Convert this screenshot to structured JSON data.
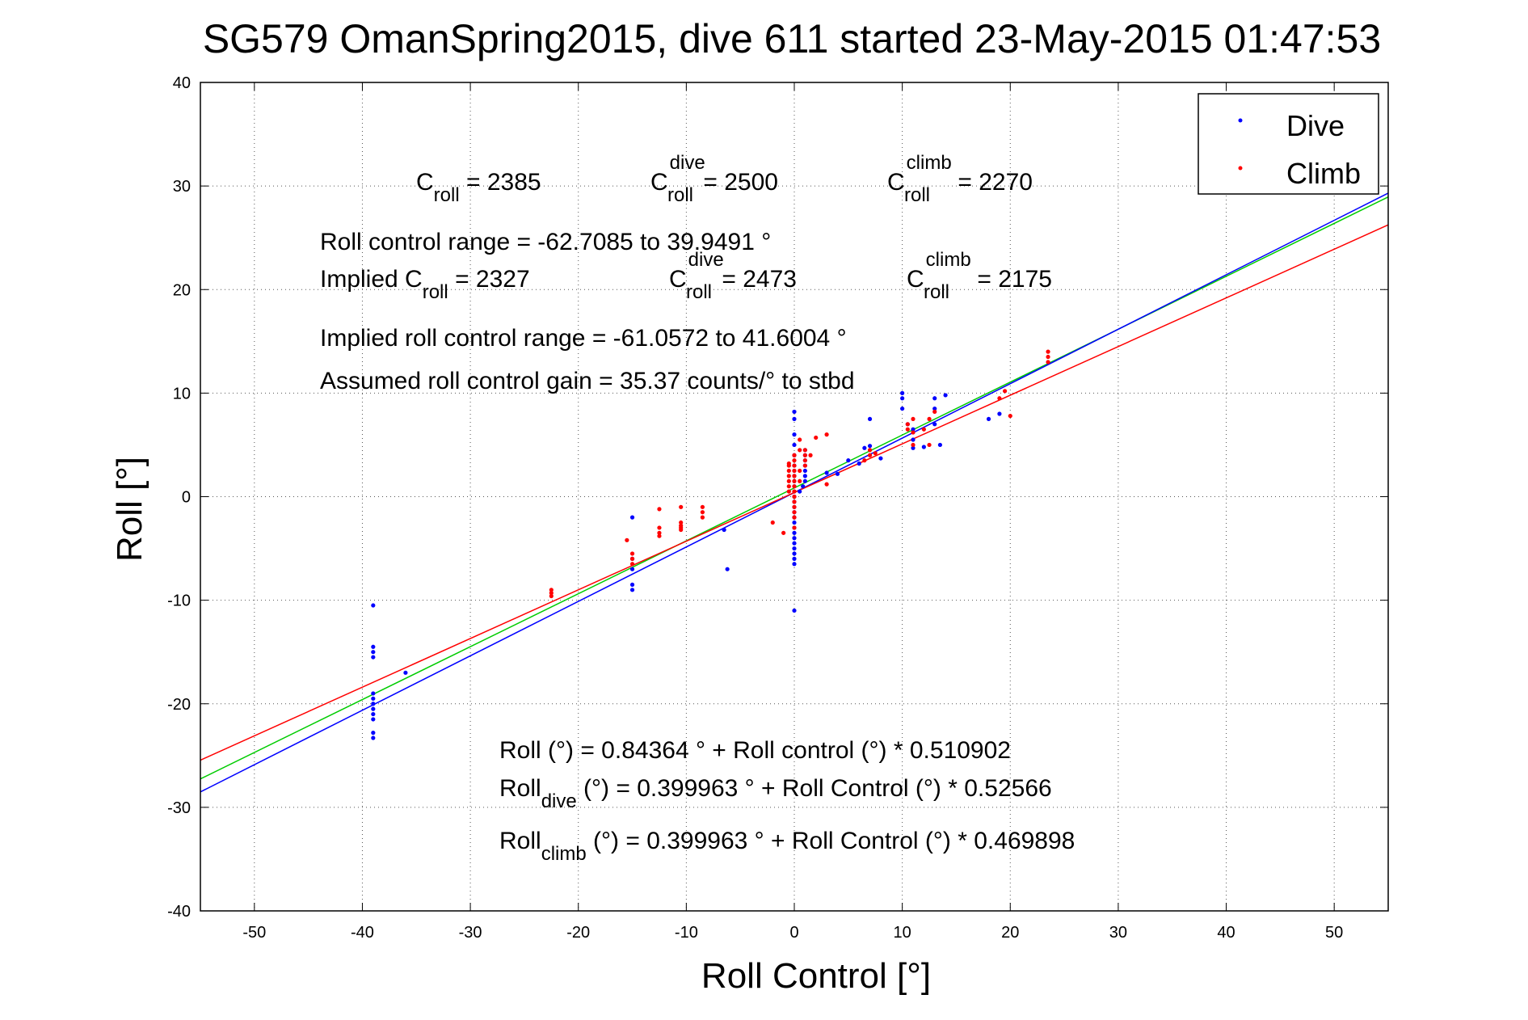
{
  "chart_data": {
    "type": "scatter",
    "title": "SG579 OmanSpring2015, dive 611 started 23-May-2015 01:47:53",
    "xlabel": "Roll Control [°]",
    "ylabel": "Roll [°]",
    "xlim": [
      -55,
      55
    ],
    "ylim": [
      -40,
      40
    ],
    "xticks": [
      -50,
      -40,
      -30,
      -20,
      -10,
      0,
      10,
      20,
      30,
      40,
      50
    ],
    "yticks": [
      -40,
      -30,
      -20,
      -10,
      0,
      10,
      20,
      30,
      40
    ],
    "grid": true,
    "legend": {
      "position": "top-right",
      "entries": [
        "Dive",
        "Climb"
      ]
    },
    "colors": {
      "dive": "#0000ff",
      "climb": "#ff0000",
      "fit_all": "#00cc00",
      "axes": "#000000",
      "grid": "#555555"
    },
    "series": [
      {
        "name": "Dive",
        "color": "#0000ff",
        "points": [
          [
            -39,
            -10.5
          ],
          [
            -39,
            -14.5
          ],
          [
            -39,
            -15
          ],
          [
            -39,
            -15.5
          ],
          [
            -39,
            -19
          ],
          [
            -39,
            -19.5
          ],
          [
            -39,
            -20
          ],
          [
            -39,
            -20.5
          ],
          [
            -39,
            -21
          ],
          [
            -39,
            -21.5
          ],
          [
            -39,
            -22.8
          ],
          [
            -39,
            -23.3
          ],
          [
            -36,
            -17
          ],
          [
            -15,
            -2
          ],
          [
            -15,
            -6
          ],
          [
            -15,
            -7
          ],
          [
            -15,
            -8.5
          ],
          [
            -15,
            -9
          ],
          [
            -6.5,
            -3.2
          ],
          [
            -6.2,
            -7
          ],
          [
            0,
            -11
          ],
          [
            0,
            -6.5
          ],
          [
            0,
            -6
          ],
          [
            0,
            -5.5
          ],
          [
            0,
            -5
          ],
          [
            0,
            -4.5
          ],
          [
            0,
            -4
          ],
          [
            0,
            -3.5
          ],
          [
            0,
            -3
          ],
          [
            0,
            -2.5
          ],
          [
            0,
            -2
          ],
          [
            0,
            -1.5
          ],
          [
            0,
            -1
          ],
          [
            0,
            -0.5
          ],
          [
            0,
            0
          ],
          [
            0,
            0.5
          ],
          [
            0,
            1
          ],
          [
            0,
            1.5
          ],
          [
            0,
            2
          ],
          [
            0,
            2.5
          ],
          [
            0,
            3
          ],
          [
            0,
            4
          ],
          [
            0,
            5
          ],
          [
            0,
            6
          ],
          [
            0,
            7.5
          ],
          [
            0,
            8.2
          ],
          [
            0.5,
            0.5
          ],
          [
            0.8,
            1
          ],
          [
            1,
            1.5
          ],
          [
            1,
            2
          ],
          [
            1,
            2.5
          ],
          [
            1,
            3
          ],
          [
            1,
            3.5
          ],
          [
            1,
            4
          ],
          [
            1,
            4.5
          ],
          [
            3,
            2.3
          ],
          [
            4,
            2.2
          ],
          [
            5,
            3.5
          ],
          [
            6,
            3.2
          ],
          [
            6.5,
            4.7
          ],
          [
            7,
            4.9
          ],
          [
            7,
            7.5
          ],
          [
            8,
            3.7
          ],
          [
            10,
            8.5
          ],
          [
            10,
            9.5
          ],
          [
            10,
            10
          ],
          [
            10.5,
            7
          ],
          [
            11,
            6.5
          ],
          [
            11,
            5.5
          ],
          [
            11,
            4.7
          ],
          [
            12,
            4.8
          ],
          [
            13,
            9.5
          ],
          [
            13,
            8.5
          ],
          [
            13,
            7
          ],
          [
            13.5,
            5
          ],
          [
            14,
            9.8
          ],
          [
            18,
            7.5
          ],
          [
            19,
            8
          ]
        ]
      },
      {
        "name": "Climb",
        "color": "#ff0000",
        "points": [
          [
            -22.5,
            -9
          ],
          [
            -22.5,
            -9.3
          ],
          [
            -22.5,
            -9.6
          ],
          [
            -15,
            -5.5
          ],
          [
            -15,
            -6
          ],
          [
            -15,
            -6.5
          ],
          [
            -15.5,
            -4.2
          ],
          [
            -12.5,
            -1.2
          ],
          [
            -12.5,
            -3
          ],
          [
            -12.5,
            -3.5
          ],
          [
            -12.5,
            -3.8
          ],
          [
            -10.5,
            -2.5
          ],
          [
            -10.5,
            -2.8
          ],
          [
            -10.5,
            -3
          ],
          [
            -10.5,
            -1
          ],
          [
            -10.5,
            -3.2
          ],
          [
            -8.5,
            -1
          ],
          [
            -8.5,
            -1.5
          ],
          [
            -8.5,
            -2
          ],
          [
            -2,
            -2.5
          ],
          [
            -1,
            -3.5
          ],
          [
            -0.5,
            0.5
          ],
          [
            -0.5,
            1
          ],
          [
            -0.5,
            1.5
          ],
          [
            -0.5,
            2
          ],
          [
            -0.5,
            2.5
          ],
          [
            -0.5,
            3
          ],
          [
            -0.5,
            3.2
          ],
          [
            0,
            -3
          ],
          [
            0,
            -2
          ],
          [
            0,
            -1.5
          ],
          [
            0,
            -1
          ],
          [
            0,
            -0.5
          ],
          [
            0,
            0
          ],
          [
            0,
            0.5
          ],
          [
            0,
            1
          ],
          [
            0,
            1.5
          ],
          [
            0,
            2
          ],
          [
            0,
            2.5
          ],
          [
            0,
            3
          ],
          [
            0,
            3.5
          ],
          [
            0,
            4
          ],
          [
            0.5,
            1.5
          ],
          [
            0.5,
            2.5
          ],
          [
            0.5,
            4.5
          ],
          [
            0.5,
            5.5
          ],
          [
            1,
            3
          ],
          [
            1,
            3.5
          ],
          [
            1,
            4
          ],
          [
            1,
            4.5
          ],
          [
            1.5,
            4
          ],
          [
            2,
            5.7
          ],
          [
            3,
            6
          ],
          [
            3,
            1.2
          ],
          [
            6.5,
            3.5
          ],
          [
            7,
            4
          ],
          [
            7,
            4.5
          ],
          [
            7.5,
            4.2
          ],
          [
            10.5,
            6.5
          ],
          [
            10.5,
            7
          ],
          [
            11,
            7.5
          ],
          [
            11,
            6.2
          ],
          [
            11,
            5
          ],
          [
            12,
            6.5
          ],
          [
            12.5,
            5
          ],
          [
            12.5,
            7.5
          ],
          [
            13,
            8.2
          ],
          [
            19,
            9.5
          ],
          [
            19.5,
            10.2
          ],
          [
            20,
            7.8
          ],
          [
            23.5,
            13
          ],
          [
            23.5,
            13.5
          ],
          [
            23.5,
            14
          ]
        ]
      }
    ],
    "fits": [
      {
        "name": "all",
        "color": "#00cc00",
        "intercept": 0.84364,
        "slope": 0.510902
      },
      {
        "name": "dive",
        "color": "#0000ff",
        "intercept": 0.399963,
        "slope": 0.52566
      },
      {
        "name": "climb",
        "color": "#ff0000",
        "intercept": 0.399963,
        "slope": 0.469898
      }
    ],
    "annotations": {
      "c_roll": "C",
      "c_roll_sub": "roll",
      "c_roll_value": " = 2385",
      "c_dive_sup": "dive",
      "c_dive_value": " = 2500",
      "c_climb_sup": "climb",
      "c_climb_value": " = 2270",
      "range_line": "Roll control range = -62.7085 to 39.9491 °",
      "implied_prefix": "Implied C",
      "implied_c_value": " = 2327",
      "implied_dive_value": " = 2473",
      "implied_climb_value": " = 2175",
      "implied_range_line": "Implied roll control range = -61.0572 to 41.6004 °",
      "gain_line": "Assumed roll control gain = 35.37 counts/° to stbd",
      "eq1": "Roll (°) = 0.84364 ° + Roll control (°) * 0.510902",
      "eq2_prefix": "Roll",
      "eq2_sub": "dive",
      "eq2_rest": " (°) = 0.399963 ° + Roll Control (°) * 0.52566",
      "eq3_prefix": "Roll",
      "eq3_sub": "climb",
      "eq3_rest": " (°) = 0.399963 ° + Roll Control (°) * 0.469898"
    }
  }
}
